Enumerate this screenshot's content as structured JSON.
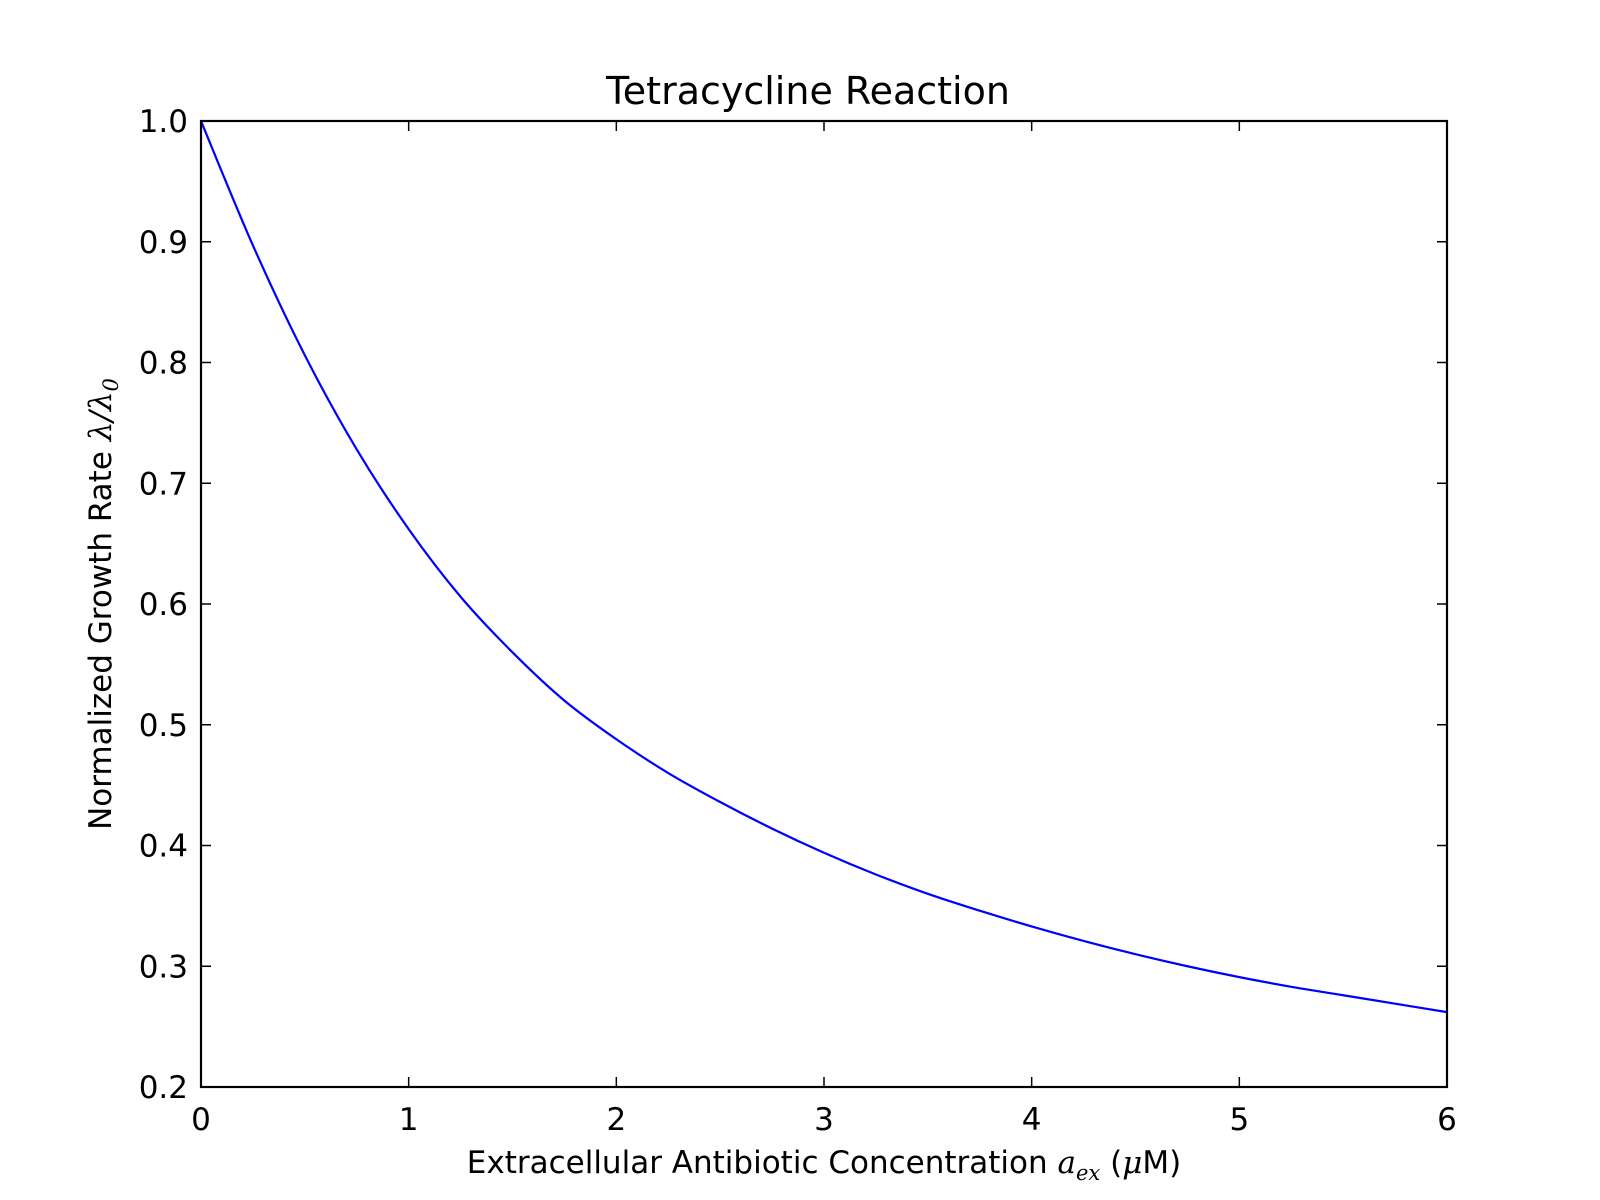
{
  "chart_data": {
    "type": "line",
    "title": "Tetracycline Reaction",
    "xlabel": {
      "text": "Extracellular Antibiotic Concentration",
      "var": "a",
      "var_sub": "ex",
      "unit_open": "(",
      "unit_mu": "μ",
      "unit_rest": "M)"
    },
    "ylabel": {
      "text": "Normalized Growth Rate",
      "var": "λ/λ",
      "var_sub": "0"
    },
    "xlim": [
      0,
      6
    ],
    "ylim": [
      0.2,
      1.0
    ],
    "x_ticks": [
      0,
      1,
      2,
      3,
      4,
      5,
      6
    ],
    "x_tick_labels": [
      "0",
      "1",
      "2",
      "3",
      "4",
      "5",
      "6"
    ],
    "y_ticks": [
      0.2,
      0.3,
      0.4,
      0.5,
      0.6,
      0.7,
      0.8,
      0.9,
      1.0
    ],
    "y_tick_labels": [
      "0.2",
      "0.3",
      "0.4",
      "0.5",
      "0.6",
      "0.7",
      "0.8",
      "0.9",
      "1.0"
    ],
    "grid": false,
    "series": [
      {
        "color": "#0000ff",
        "x": [
          0,
          0.25,
          0.5,
          0.75,
          1.0,
          1.25,
          1.5,
          1.75,
          2.0,
          2.25,
          2.5,
          2.75,
          3.0,
          3.25,
          3.5,
          3.75,
          4.0,
          4.25,
          4.5,
          4.75,
          5.0,
          5.25,
          5.5,
          5.75,
          6.0
        ],
        "y": [
          1.0,
          0.897,
          0.806,
          0.728,
          0.662,
          0.606,
          0.56,
          0.52,
          0.488,
          0.46,
          0.436,
          0.414,
          0.394,
          0.376,
          0.36,
          0.346,
          0.333,
          0.321,
          0.31,
          0.3,
          0.291,
          0.283,
          0.276,
          0.269,
          0.262
        ]
      }
    ]
  }
}
